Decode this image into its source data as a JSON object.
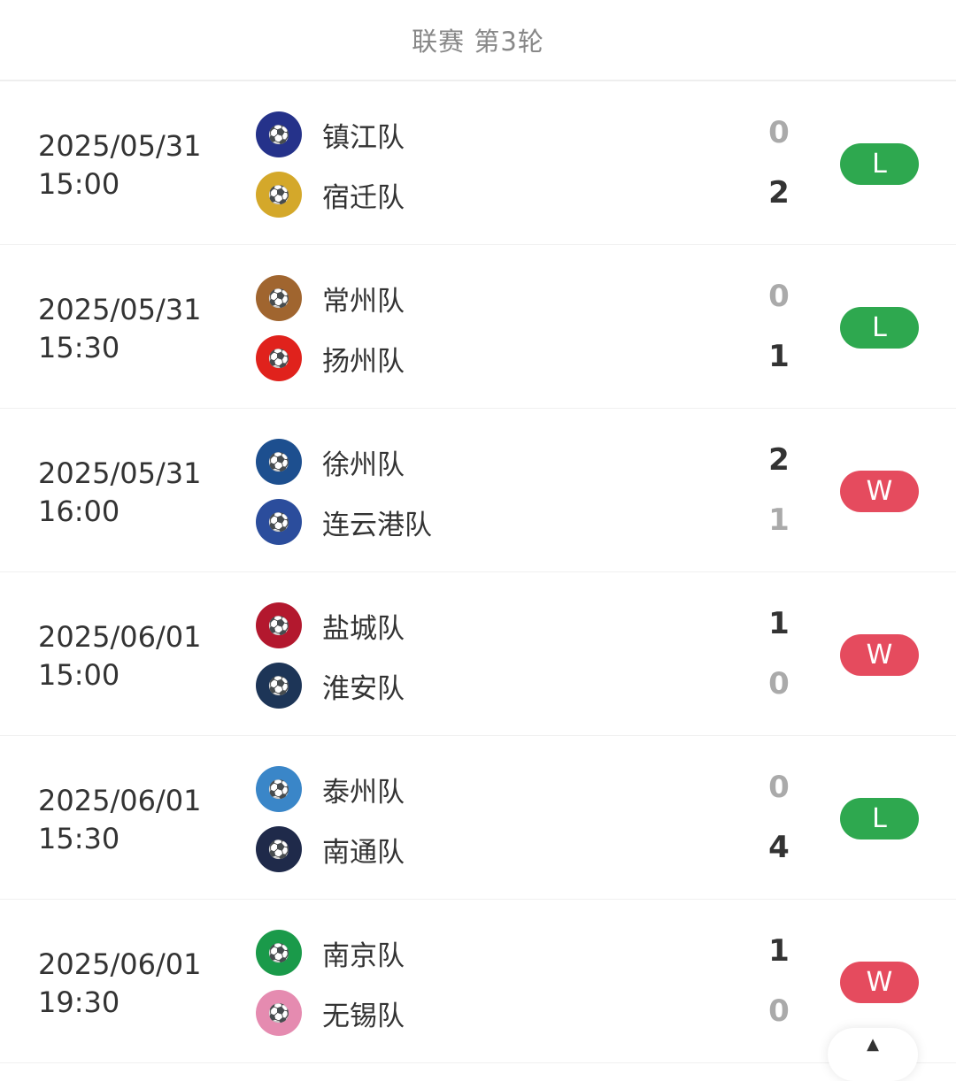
{
  "header": {
    "title": "联赛 第3轮"
  },
  "colors": {
    "win": "#e54b5e",
    "loss": "#2ea84f"
  },
  "matches": [
    {
      "date": "2025/05/31",
      "time": "15:00",
      "home": {
        "name": "镇江队",
        "score": "0",
        "logo": "#25328a"
      },
      "away": {
        "name": "宿迁队",
        "score": "2",
        "logo": "#d4a82a"
      },
      "result": "L",
      "winner": "away"
    },
    {
      "date": "2025/05/31",
      "time": "15:30",
      "home": {
        "name": "常州队",
        "score": "0",
        "logo": "#a0652f"
      },
      "away": {
        "name": "扬州队",
        "score": "1",
        "logo": "#e0221c"
      },
      "result": "L",
      "winner": "away"
    },
    {
      "date": "2025/05/31",
      "time": "16:00",
      "home": {
        "name": "徐州队",
        "score": "2",
        "logo": "#1d4f8f"
      },
      "away": {
        "name": "连云港队",
        "score": "1",
        "logo": "#2b4d9c"
      },
      "result": "W",
      "winner": "home"
    },
    {
      "date": "2025/06/01",
      "time": "15:00",
      "home": {
        "name": "盐城队",
        "score": "1",
        "logo": "#b3182e"
      },
      "away": {
        "name": "淮安队",
        "score": "0",
        "logo": "#1d3557"
      },
      "result": "W",
      "winner": "home"
    },
    {
      "date": "2025/06/01",
      "time": "15:30",
      "home": {
        "name": "泰州队",
        "score": "0",
        "logo": "#3a86c8"
      },
      "away": {
        "name": "南通队",
        "score": "4",
        "logo": "#1f2a4a"
      },
      "result": "L",
      "winner": "away"
    },
    {
      "date": "2025/06/01",
      "time": "19:30",
      "home": {
        "name": "南京队",
        "score": "1",
        "logo": "#1a9a4a"
      },
      "away": {
        "name": "无锡队",
        "score": "0",
        "logo": "#e58bb0"
      },
      "result": "W",
      "winner": "home"
    }
  ],
  "fab": {
    "icon": "arrow-up-icon",
    "label": "▲"
  }
}
